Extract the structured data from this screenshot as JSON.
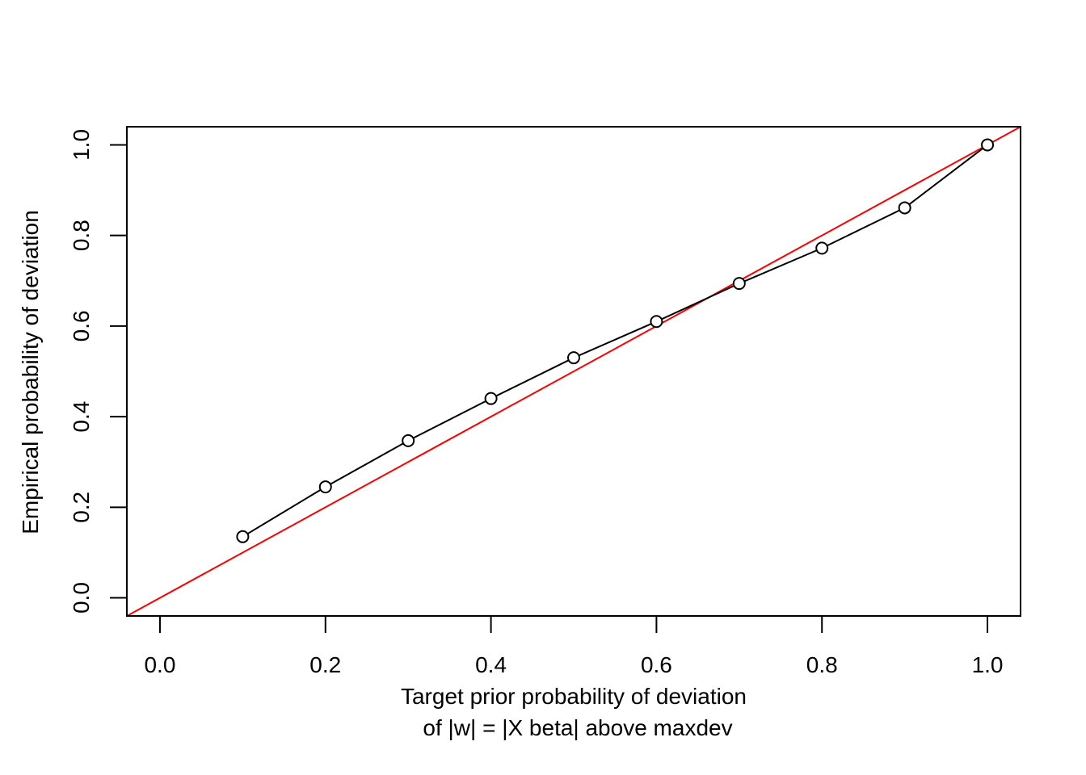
{
  "chart_data": {
    "type": "line",
    "title": "",
    "xlabel_line1": "Target prior probability of deviation",
    "xlabel_line2": "of |w| = |X beta| above maxdev",
    "ylabel": "Empirical probability of deviation",
    "xlim": [
      -0.04,
      1.04
    ],
    "ylim": [
      -0.04,
      1.04
    ],
    "x_ticks": [
      "0.0",
      "0.2",
      "0.4",
      "0.6",
      "0.8",
      "1.0"
    ],
    "y_ticks": [
      "0.0",
      "0.2",
      "0.4",
      "0.6",
      "0.8",
      "1.0"
    ],
    "grid": false,
    "series": [
      {
        "color": "#000000",
        "marker": "open-circle",
        "x": [
          0.1,
          0.2,
          0.3,
          0.4,
          0.5,
          0.6,
          0.7,
          0.8,
          0.9,
          1.0
        ],
        "y": [
          0.135,
          0.245,
          0.347,
          0.44,
          0.53,
          0.61,
          0.694,
          0.772,
          0.861,
          1.0
        ]
      }
    ],
    "reference_line": {
      "type": "identity",
      "color": "#ff0000"
    }
  }
}
